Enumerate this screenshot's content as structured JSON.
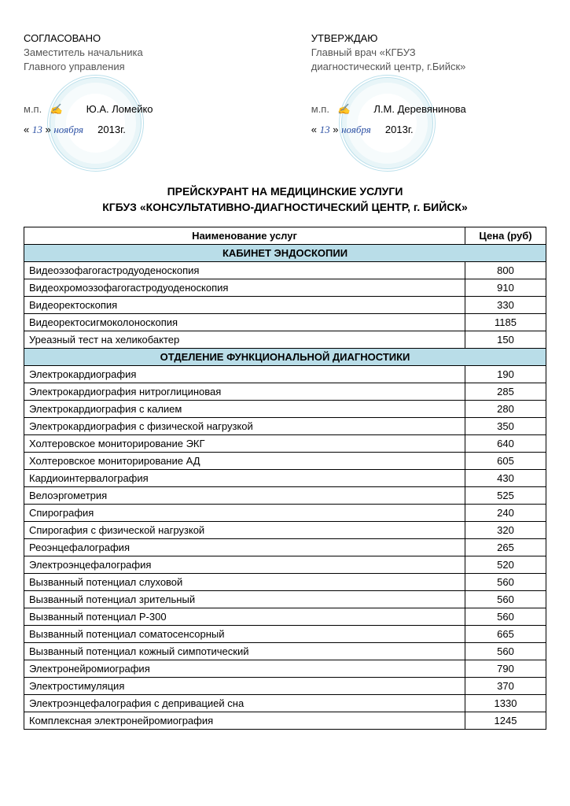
{
  "approval": {
    "left": {
      "heading": "СОГЛАСОВАНО",
      "line1": "Заместитель начальника",
      "line2": "Главного управления",
      "mp": "м.п.",
      "name": "Ю.А. Ломейко",
      "date_day": "13",
      "date_month": "ноября",
      "date_year": "2013г.",
      "quote_open": "«",
      "quote_close": "»"
    },
    "right": {
      "heading": "УТВЕРЖДАЮ",
      "line1": "Главный врач «КГБУЗ",
      "line2": "диагностический центр, г.Бийск»",
      "mp": "м.п.",
      "name": "Л.М. Деревянинова",
      "date_day": "13",
      "date_month": "ноября",
      "date_year": "2013г.",
      "quote_open": "«",
      "quote_close": "»"
    }
  },
  "title": {
    "line1": "ПРЕЙСКУРАНТ НА МЕДИЦИНСКИЕ УСЛУГИ",
    "line2": "КГБУЗ «КОНСУЛЬТАТИВНО-ДИАГНОСТИЧЕСКИЙ ЦЕНТР, г. БИЙСК»"
  },
  "table": {
    "col_service": "Наименование услуг",
    "col_price": "Цена (руб)",
    "section_header_color": "#b9dde8",
    "border_color": "#000000",
    "font_size": 13,
    "sections": [
      {
        "title": "КАБИНЕТ ЭНДОСКОПИИ",
        "rows": [
          {
            "name": "Видеоэзофагогастродуоденоскопия",
            "price": 800
          },
          {
            "name": "Видеохромоэзофагогастродуоденоскопия",
            "price": 910
          },
          {
            "name": "Видеоректоскопия",
            "price": 330
          },
          {
            "name": "Видеоректосигмоколоноскопия",
            "price": 1185
          },
          {
            "name": "Уреазный тест на хеликобактер",
            "price": 150
          }
        ]
      },
      {
        "title": "ОТДЕЛЕНИЕ ФУНКЦИОНАЛЬНОЙ ДИАГНОСТИКИ",
        "rows": [
          {
            "name": "Электрокардиография",
            "price": 190
          },
          {
            "name": "Электрокардиография нитроглициновая",
            "price": 285
          },
          {
            "name": "Электрокардиография с калием",
            "price": 280
          },
          {
            "name": "Электрокардиография с физической нагрузкой",
            "price": 350
          },
          {
            "name": "Холтеровское мониторирование ЭКГ",
            "price": 640
          },
          {
            "name": "Холтеровское мониторирование АД",
            "price": 605
          },
          {
            "name": "Кардиоинтервалография",
            "price": 430
          },
          {
            "name": "Велоэргометрия",
            "price": 525
          },
          {
            "name": "Спирография",
            "price": 240
          },
          {
            "name": "Спирогафия с физической нагрузкой",
            "price": 320
          },
          {
            "name": "Реоэнцефалография",
            "price": 265
          },
          {
            "name": "Электроэнцефалография",
            "price": 520
          },
          {
            "name": "Вызванный потенциал слуховой",
            "price": 560
          },
          {
            "name": "Вызванный потенциал зрительный",
            "price": 560
          },
          {
            "name": "Вызванный потенциал Р-300",
            "price": 560
          },
          {
            "name": "Вызванный потенциал соматосенсорный",
            "price": 665
          },
          {
            "name": "Вызванный потенциал кожный симпотический",
            "price": 560
          },
          {
            "name": "Электронейромиография",
            "price": 790
          },
          {
            "name": "Электростимуляция",
            "price": 370
          },
          {
            "name": "Электроэнцефалография с депривацией сна",
            "price": 1330
          },
          {
            "name": "Комплексная электронейромиография",
            "price": 1245
          }
        ]
      }
    ]
  }
}
